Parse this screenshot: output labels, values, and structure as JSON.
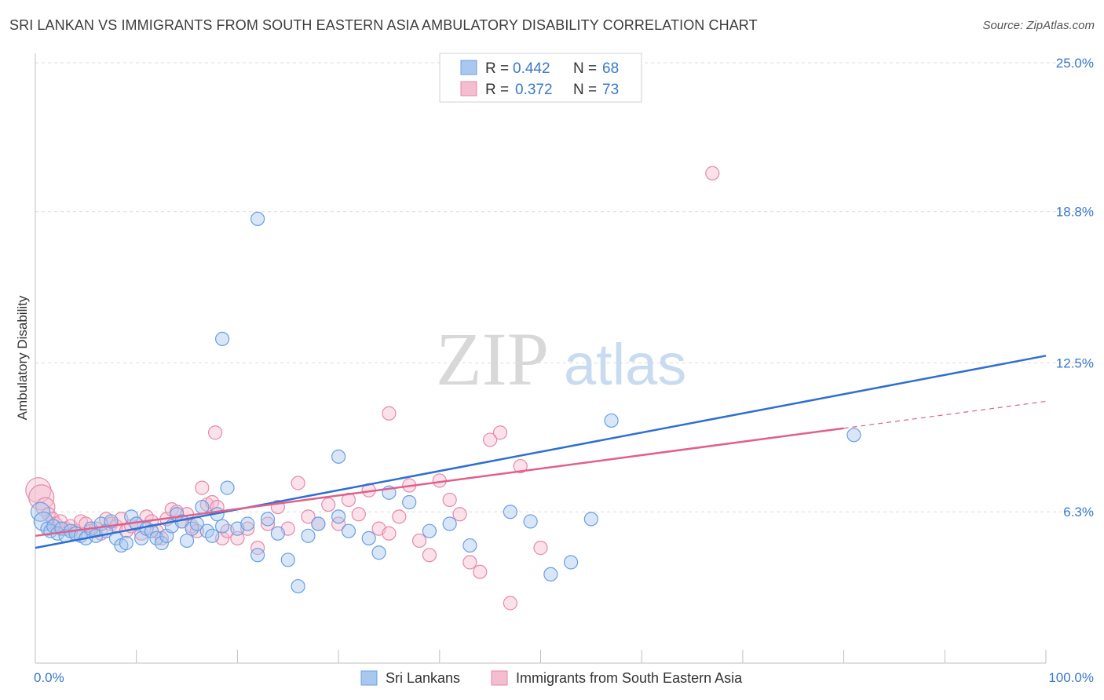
{
  "chart_data": {
    "type": "scatter",
    "title": "SRI LANKAN VS IMMIGRANTS FROM SOUTH EASTERN ASIA AMBULATORY DISABILITY CORRELATION CHART",
    "source": "Source: ZipAtlas.com",
    "ylabel": "Ambulatory Disability",
    "xlabel": "",
    "xlim": [
      0,
      100
    ],
    "ylim": [
      0,
      25
    ],
    "x_tick_labels": {
      "left": "0.0%",
      "right": "100.0%"
    },
    "y_ticks": [
      {
        "value": 6.3,
        "label": "6.3%"
      },
      {
        "value": 12.5,
        "label": "12.5%"
      },
      {
        "value": 18.8,
        "label": "18.8%"
      },
      {
        "value": 25.0,
        "label": "25.0%"
      }
    ],
    "grid": true,
    "watermark": {
      "zip": "ZIP",
      "atlas": "atlas"
    },
    "legend": {
      "rows": [
        {
          "r_label": "R = ",
          "r_value": "0.442",
          "n_label": "N = ",
          "n_value": "68",
          "series": "Sri Lankans"
        },
        {
          "r_label": "R = ",
          "r_value": "0.372",
          "n_label": "N = ",
          "n_value": "73",
          "series": "Immigrants from South Eastern Asia"
        }
      ]
    },
    "series": [
      {
        "name": "Sri Lankans",
        "color": "#6a9fe0",
        "fill": "#a9c8f0",
        "line_color": "#2f6fd0",
        "trend": {
          "x0": 0,
          "y0": 4.8,
          "x1": 100,
          "y1": 12.8,
          "dashed_from": null
        },
        "points": [
          [
            0.5,
            6.3
          ],
          [
            0.8,
            5.9
          ],
          [
            1.2,
            5.6
          ],
          [
            1.5,
            5.5
          ],
          [
            1.8,
            5.7
          ],
          [
            2.2,
            5.4
          ],
          [
            2.6,
            5.6
          ],
          [
            3,
            5.3
          ],
          [
            3.5,
            5.5
          ],
          [
            4,
            5.4
          ],
          [
            4.5,
            5.3
          ],
          [
            5,
            5.2
          ],
          [
            5.5,
            5.6
          ],
          [
            6,
            5.3
          ],
          [
            6.5,
            5.8
          ],
          [
            7,
            5.5
          ],
          [
            7.5,
            5.9
          ],
          [
            8,
            5.2
          ],
          [
            8.5,
            4.9
          ],
          [
            9,
            5
          ],
          [
            9.5,
            6.1
          ],
          [
            10,
            5.8
          ],
          [
            10.5,
            5.2
          ],
          [
            11,
            5.6
          ],
          [
            11.5,
            5.5
          ],
          [
            12,
            5.2
          ],
          [
            12.5,
            5
          ],
          [
            13,
            5.3
          ],
          [
            13.5,
            5.7
          ],
          [
            14,
            6.2
          ],
          [
            14.5,
            5.9
          ],
          [
            15,
            5.1
          ],
          [
            15.5,
            5.6
          ],
          [
            16,
            5.8
          ],
          [
            16.5,
            6.5
          ],
          [
            17,
            5.5
          ],
          [
            17.5,
            5.3
          ],
          [
            18,
            6.2
          ],
          [
            18.5,
            5.7
          ],
          [
            19,
            7.3
          ],
          [
            20,
            5.6
          ],
          [
            21,
            5.8
          ],
          [
            22,
            4.5
          ],
          [
            23,
            6
          ],
          [
            24,
            5.4
          ],
          [
            25,
            4.3
          ],
          [
            26,
            3.2
          ],
          [
            27,
            5.3
          ],
          [
            28,
            5.8
          ],
          [
            30,
            6.1
          ],
          [
            31,
            5.5
          ],
          [
            33,
            5.2
          ],
          [
            34,
            4.6
          ],
          [
            35,
            7.1
          ],
          [
            37,
            6.7
          ],
          [
            39,
            5.5
          ],
          [
            41,
            5.8
          ],
          [
            43,
            4.9
          ],
          [
            47,
            6.3
          ],
          [
            49,
            5.9
          ],
          [
            51,
            3.7
          ],
          [
            53,
            4.2
          ],
          [
            55,
            6
          ],
          [
            57,
            10.1
          ],
          [
            18.5,
            13.5
          ],
          [
            22,
            18.5
          ],
          [
            30,
            8.6
          ],
          [
            81,
            9.5
          ]
        ]
      },
      {
        "name": "Immigrants from South Eastern Asia",
        "color": "#e58aa8",
        "fill": "#f4bdd0",
        "line_color": "#e0608a",
        "trend": {
          "x0": 0,
          "y0": 5.3,
          "x1": 100,
          "y1": 10.9,
          "dashed_from": 80
        },
        "points": [
          [
            0.3,
            7.2
          ],
          [
            0.6,
            6.9
          ],
          [
            1,
            6.5
          ],
          [
            1.3,
            6.2
          ],
          [
            1.7,
            6
          ],
          [
            2,
            5.8
          ],
          [
            2.5,
            5.9
          ],
          [
            3,
            5.6
          ],
          [
            3.5,
            5.7
          ],
          [
            4,
            5.5
          ],
          [
            4.5,
            5.9
          ],
          [
            5,
            5.8
          ],
          [
            5.5,
            5.5
          ],
          [
            6,
            5.6
          ],
          [
            6.5,
            5.4
          ],
          [
            7,
            6
          ],
          [
            7.5,
            5.8
          ],
          [
            8,
            5.7
          ],
          [
            8.5,
            6
          ],
          [
            9,
            5.5
          ],
          [
            9.5,
            5.7
          ],
          [
            10,
            5.8
          ],
          [
            10.5,
            5.4
          ],
          [
            11,
            6.1
          ],
          [
            11.5,
            5.9
          ],
          [
            12,
            5.5
          ],
          [
            12.5,
            5.2
          ],
          [
            13,
            6
          ],
          [
            13.5,
            6.4
          ],
          [
            14,
            6.3
          ],
          [
            14.5,
            5.9
          ],
          [
            15,
            6.2
          ],
          [
            15.5,
            5.7
          ],
          [
            16,
            5.5
          ],
          [
            16.5,
            7.3
          ],
          [
            17,
            6.6
          ],
          [
            17.5,
            6.7
          ],
          [
            18,
            6.5
          ],
          [
            18.5,
            5.2
          ],
          [
            19,
            5.5
          ],
          [
            20,
            5.2
          ],
          [
            21,
            5.6
          ],
          [
            22,
            4.8
          ],
          [
            23,
            5.8
          ],
          [
            24,
            6.5
          ],
          [
            25,
            5.6
          ],
          [
            26,
            7.5
          ],
          [
            27,
            6.1
          ],
          [
            28,
            5.8
          ],
          [
            29,
            6.6
          ],
          [
            30,
            5.8
          ],
          [
            31,
            6.8
          ],
          [
            32,
            6.2
          ],
          [
            33,
            7.2
          ],
          [
            34,
            5.6
          ],
          [
            35,
            5.4
          ],
          [
            36,
            6.1
          ],
          [
            37,
            7.4
          ],
          [
            38,
            5.1
          ],
          [
            39,
            4.5
          ],
          [
            40,
            7.6
          ],
          [
            41,
            6.8
          ],
          [
            42,
            6.2
          ],
          [
            43,
            4.2
          ],
          [
            44,
            3.8
          ],
          [
            45,
            9.3
          ],
          [
            46,
            9.6
          ],
          [
            47,
            2.5
          ],
          [
            48,
            8.2
          ],
          [
            50,
            4.8
          ],
          [
            17.8,
            9.6
          ],
          [
            35,
            10.4
          ],
          [
            67,
            20.4
          ]
        ]
      }
    ],
    "bottom_legend": [
      {
        "label": "Sri Lankans"
      },
      {
        "label": "Immigrants from South Eastern Asia"
      }
    ]
  }
}
